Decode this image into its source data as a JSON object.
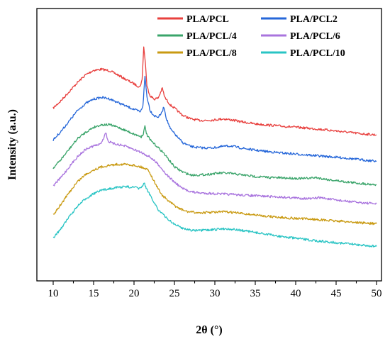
{
  "chart_data": {
    "type": "line",
    "title": "",
    "xlabel": "2θ (°)",
    "ylabel": "Intensity (a.u.)",
    "xlim": [
      10,
      50
    ],
    "ylim": [
      0,
      1
    ],
    "x_ticks": [
      "10",
      "15",
      "20",
      "25",
      "30",
      "35",
      "40",
      "45",
      "50"
    ],
    "y_ticks_shown": false,
    "legend_position": "top-right",
    "grid": false,
    "series": [
      {
        "name": "PLA/PCL",
        "color": "#e8403e",
        "points": [
          [
            10,
            0.66
          ],
          [
            11,
            0.69
          ],
          [
            12,
            0.725
          ],
          [
            13,
            0.76
          ],
          [
            14,
            0.79
          ],
          [
            15,
            0.808
          ],
          [
            16,
            0.812
          ],
          [
            17,
            0.806
          ],
          [
            18,
            0.79
          ],
          [
            19,
            0.772
          ],
          [
            20,
            0.755
          ],
          [
            20.7,
            0.742
          ],
          [
            21.0,
            0.77
          ],
          [
            21.2,
            0.9
          ],
          [
            21.4,
            0.84
          ],
          [
            21.6,
            0.745
          ],
          [
            22.0,
            0.708
          ],
          [
            22.5,
            0.695
          ],
          [
            23.0,
            0.7
          ],
          [
            23.5,
            0.738
          ],
          [
            23.8,
            0.702
          ],
          [
            24.5,
            0.672
          ],
          [
            25,
            0.66
          ],
          [
            26,
            0.632
          ],
          [
            27,
            0.618
          ],
          [
            28,
            0.612
          ],
          [
            29,
            0.612
          ],
          [
            30,
            0.614
          ],
          [
            31,
            0.618
          ],
          [
            32,
            0.614
          ],
          [
            33,
            0.608
          ],
          [
            35,
            0.598
          ],
          [
            38,
            0.59
          ],
          [
            40,
            0.585
          ],
          [
            42,
            0.58
          ],
          [
            44,
            0.574
          ],
          [
            46,
            0.567
          ],
          [
            48,
            0.56
          ],
          [
            50,
            0.555
          ]
        ]
      },
      {
        "name": "PLA/PCL2",
        "color": "#2667d9",
        "points": [
          [
            10,
            0.535
          ],
          [
            11,
            0.57
          ],
          [
            12,
            0.61
          ],
          [
            13,
            0.65
          ],
          [
            14,
            0.678
          ],
          [
            15,
            0.695
          ],
          [
            16,
            0.702
          ],
          [
            17,
            0.696
          ],
          [
            18,
            0.682
          ],
          [
            19,
            0.668
          ],
          [
            20,
            0.655
          ],
          [
            20.8,
            0.645
          ],
          [
            21.1,
            0.67
          ],
          [
            21.35,
            0.785
          ],
          [
            21.6,
            0.705
          ],
          [
            22.0,
            0.65
          ],
          [
            22.5,
            0.63
          ],
          [
            23.0,
            0.625
          ],
          [
            23.4,
            0.64
          ],
          [
            23.7,
            0.665
          ],
          [
            24.0,
            0.62
          ],
          [
            24.5,
            0.578
          ],
          [
            25,
            0.56
          ],
          [
            26,
            0.525
          ],
          [
            27,
            0.51
          ],
          [
            28,
            0.505
          ],
          [
            29,
            0.504
          ],
          [
            30,
            0.505
          ],
          [
            31,
            0.51
          ],
          [
            32,
            0.512
          ],
          [
            33,
            0.505
          ],
          [
            35,
            0.495
          ],
          [
            38,
            0.485
          ],
          [
            40,
            0.48
          ],
          [
            42,
            0.475
          ],
          [
            44,
            0.47
          ],
          [
            46,
            0.465
          ],
          [
            48,
            0.458
          ],
          [
            50,
            0.452
          ]
        ]
      },
      {
        "name": "PLA/PCL/4",
        "color": "#3aa46a",
        "points": [
          [
            10,
            0.425
          ],
          [
            11,
            0.46
          ],
          [
            12,
            0.5
          ],
          [
            13,
            0.54
          ],
          [
            14,
            0.565
          ],
          [
            15,
            0.585
          ],
          [
            16,
            0.595
          ],
          [
            17,
            0.595
          ],
          [
            18,
            0.585
          ],
          [
            19,
            0.572
          ],
          [
            20,
            0.558
          ],
          [
            20.9,
            0.548
          ],
          [
            21.15,
            0.56
          ],
          [
            21.35,
            0.588
          ],
          [
            21.6,
            0.555
          ],
          [
            22.0,
            0.535
          ],
          [
            22.5,
            0.52
          ],
          [
            23.0,
            0.505
          ],
          [
            23.5,
            0.49
          ],
          [
            24,
            0.47
          ],
          [
            24.5,
            0.45
          ],
          [
            25,
            0.43
          ],
          [
            26,
            0.41
          ],
          [
            27,
            0.398
          ],
          [
            28,
            0.398
          ],
          [
            29,
            0.4
          ],
          [
            30,
            0.404
          ],
          [
            31,
            0.406
          ],
          [
            32,
            0.404
          ],
          [
            33,
            0.4
          ],
          [
            35,
            0.392
          ],
          [
            37,
            0.388
          ],
          [
            39,
            0.386
          ],
          [
            41,
            0.384
          ],
          [
            42.5,
            0.388
          ],
          [
            44,
            0.38
          ],
          [
            46,
            0.372
          ],
          [
            48,
            0.365
          ],
          [
            50,
            0.36
          ]
        ]
      },
      {
        "name": "PLA/PCL/6",
        "color": "#a974de",
        "points": [
          [
            10,
            0.355
          ],
          [
            11,
            0.39
          ],
          [
            12,
            0.43
          ],
          [
            13,
            0.47
          ],
          [
            14,
            0.498
          ],
          [
            15,
            0.512
          ],
          [
            15.8,
            0.518
          ],
          [
            16.2,
            0.54
          ],
          [
            16.5,
            0.565
          ],
          [
            16.8,
            0.53
          ],
          [
            17.5,
            0.52
          ],
          [
            18,
            0.518
          ],
          [
            19,
            0.51
          ],
          [
            20,
            0.498
          ],
          [
            21,
            0.485
          ],
          [
            22,
            0.468
          ],
          [
            23,
            0.44
          ],
          [
            24,
            0.4
          ],
          [
            25,
            0.37
          ],
          [
            26,
            0.345
          ],
          [
            27,
            0.333
          ],
          [
            28,
            0.328
          ],
          [
            30,
            0.325
          ],
          [
            32,
            0.322
          ],
          [
            34,
            0.318
          ],
          [
            36,
            0.315
          ],
          [
            38,
            0.312
          ],
          [
            40,
            0.308
          ],
          [
            42,
            0.305
          ],
          [
            43,
            0.31
          ],
          [
            44,
            0.304
          ],
          [
            46,
            0.296
          ],
          [
            48,
            0.29
          ],
          [
            50,
            0.285
          ]
        ]
      },
      {
        "name": "PLA/PCL/8",
        "color": "#c99a12",
        "points": [
          [
            10,
            0.24
          ],
          [
            11,
            0.285
          ],
          [
            12,
            0.33
          ],
          [
            13,
            0.372
          ],
          [
            14,
            0.4
          ],
          [
            15,
            0.418
          ],
          [
            16,
            0.43
          ],
          [
            17,
            0.436
          ],
          [
            18,
            0.44
          ],
          [
            19,
            0.44
          ],
          [
            20,
            0.436
          ],
          [
            21,
            0.428
          ],
          [
            21.8,
            0.418
          ],
          [
            22.2,
            0.39
          ],
          [
            22.8,
            0.355
          ],
          [
            23.5,
            0.318
          ],
          [
            24.5,
            0.29
          ],
          [
            25.5,
            0.268
          ],
          [
            26.5,
            0.255
          ],
          [
            28,
            0.25
          ],
          [
            30,
            0.252
          ],
          [
            31,
            0.254
          ],
          [
            32,
            0.252
          ],
          [
            34,
            0.245
          ],
          [
            36,
            0.238
          ],
          [
            38,
            0.232
          ],
          [
            40,
            0.228
          ],
          [
            42,
            0.225
          ],
          [
            44,
            0.22
          ],
          [
            46,
            0.216
          ],
          [
            48,
            0.211
          ],
          [
            50,
            0.207
          ]
        ]
      },
      {
        "name": "PLA/PCL/10",
        "color": "#29c4c4",
        "points": [
          [
            10,
            0.15
          ],
          [
            11,
            0.19
          ],
          [
            12,
            0.235
          ],
          [
            13,
            0.275
          ],
          [
            14,
            0.305
          ],
          [
            15,
            0.325
          ],
          [
            16,
            0.338
          ],
          [
            17,
            0.345
          ],
          [
            18,
            0.35
          ],
          [
            19,
            0.352
          ],
          [
            20,
            0.35
          ],
          [
            20.7,
            0.345
          ],
          [
            21.0,
            0.352
          ],
          [
            21.25,
            0.368
          ],
          [
            21.5,
            0.345
          ],
          [
            22.0,
            0.32
          ],
          [
            22.5,
            0.29
          ],
          [
            23,
            0.262
          ],
          [
            24,
            0.23
          ],
          [
            25,
            0.205
          ],
          [
            26,
            0.19
          ],
          [
            27,
            0.182
          ],
          [
            28,
            0.18
          ],
          [
            30,
            0.184
          ],
          [
            31,
            0.188
          ],
          [
            32,
            0.186
          ],
          [
            34,
            0.178
          ],
          [
            36,
            0.168
          ],
          [
            38,
            0.158
          ],
          [
            40,
            0.15
          ],
          [
            42,
            0.142
          ],
          [
            44,
            0.136
          ],
          [
            46,
            0.13
          ],
          [
            48,
            0.124
          ],
          [
            50,
            0.118
          ]
        ]
      }
    ]
  }
}
